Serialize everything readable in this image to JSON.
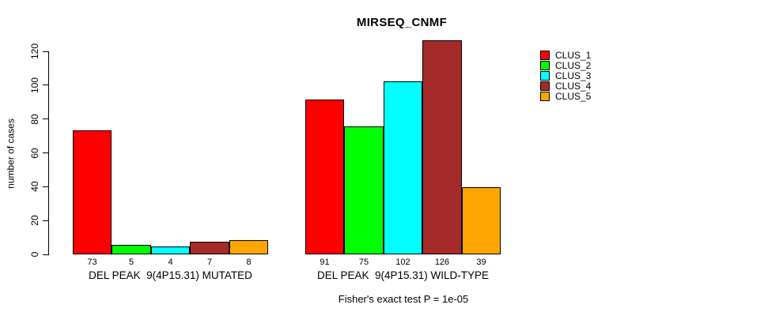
{
  "title": "MIRSEQ_CNMF",
  "ylabel": "number of cases",
  "footnote": "Fisher's exact test P = 1e-05",
  "chart_data": {
    "type": "bar",
    "title": "MIRSEQ_CNMF",
    "xlabel": "",
    "ylabel": "number of cases",
    "ylim": [
      0,
      130
    ],
    "yticks": [
      0,
      20,
      40,
      60,
      80,
      100,
      120
    ],
    "grid": false,
    "legend_position": "right",
    "series": [
      {
        "name": "CLUS_1",
        "color": "#FF0000"
      },
      {
        "name": "CLUS_2",
        "color": "#00FF00"
      },
      {
        "name": "CLUS_3",
        "color": "#00FFFF"
      },
      {
        "name": "CLUS_4",
        "color": "#A52A2A"
      },
      {
        "name": "CLUS_5",
        "color": "#FFA500"
      }
    ],
    "groups": [
      {
        "label": "DEL PEAK  9(4P15.31) MUTATED",
        "values": [
          73,
          5,
          4,
          7,
          8
        ]
      },
      {
        "label": "DEL PEAK  9(4P15.31) WILD-TYPE",
        "values": [
          91,
          75,
          102,
          126,
          39
        ]
      }
    ],
    "annotation": "Fisher's exact test P = 1e-05"
  }
}
